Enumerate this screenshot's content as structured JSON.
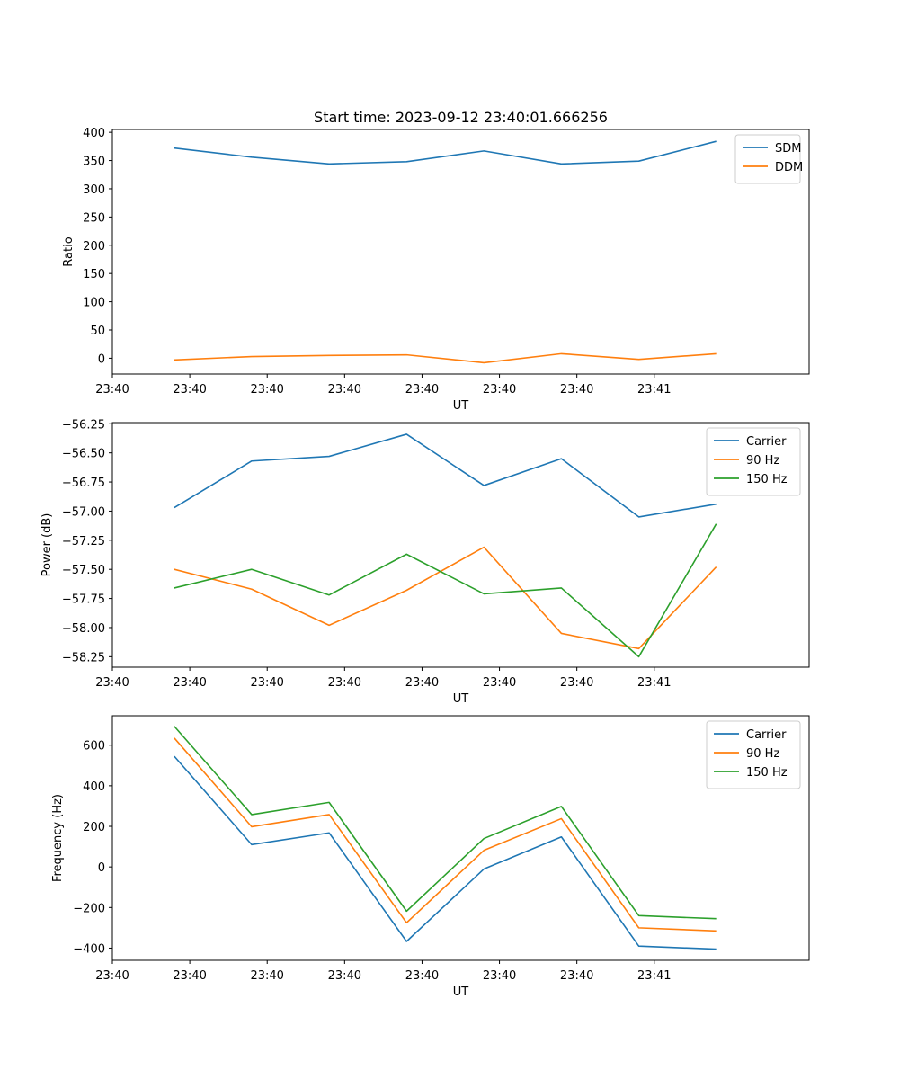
{
  "figure_title": "Start time: 2023-09-12 23:40:01.666256",
  "chart_data": [
    {
      "type": "line",
      "name": "ratio",
      "xlabel": "UT",
      "ylabel": "Ratio",
      "x_ticks": [
        "23:40",
        "23:40",
        "23:40",
        "23:40",
        "23:40",
        "23:40",
        "23:40",
        "23:41"
      ],
      "x": [
        1,
        2,
        3,
        4,
        5,
        6,
        7,
        8
      ],
      "xlim": [
        0.2,
        9.2
      ],
      "ylim": [
        -28,
        405
      ],
      "y_ticks": [
        0,
        50,
        100,
        150,
        200,
        250,
        300,
        350,
        400
      ],
      "y_tick_labels": [
        "0",
        "50",
        "100",
        "150",
        "200",
        "250",
        "300",
        "350",
        "400"
      ],
      "legend": "top-right",
      "series": [
        {
          "name": "SDM",
          "color": "#1f77b4",
          "values": [
            372,
            356,
            344,
            348,
            367,
            344,
            349,
            384
          ]
        },
        {
          "name": "DDM",
          "color": "#ff7f0e",
          "values": [
            -3,
            3,
            5,
            6,
            -8,
            8,
            -2,
            8
          ]
        }
      ]
    },
    {
      "type": "line",
      "name": "power",
      "xlabel": "UT",
      "ylabel": "Power (dB)",
      "x_ticks": [
        "23:40",
        "23:40",
        "23:40",
        "23:40",
        "23:40",
        "23:40",
        "23:40",
        "23:41"
      ],
      "x": [
        1,
        2,
        3,
        4,
        5,
        6,
        7,
        8
      ],
      "xlim": [
        0.2,
        9.2
      ],
      "ylim": [
        -58.34,
        -56.24
      ],
      "y_ticks": [
        -58.25,
        -58.0,
        -57.75,
        -57.5,
        -57.25,
        -57.0,
        -56.75,
        -56.5,
        -56.25
      ],
      "y_tick_labels": [
        "−58.25",
        "−58.00",
        "−57.75",
        "−57.50",
        "−57.25",
        "−57.00",
        "−56.75",
        "−56.50",
        "−56.25"
      ],
      "legend": "top-right",
      "series": [
        {
          "name": "Carrier",
          "color": "#1f77b4",
          "values": [
            -56.97,
            -56.57,
            -56.53,
            -56.34,
            -56.78,
            -56.55,
            -57.05,
            -56.94
          ]
        },
        {
          "name": "90 Hz",
          "color": "#ff7f0e",
          "values": [
            -57.5,
            -57.67,
            -57.98,
            -57.68,
            -57.31,
            -58.05,
            -58.18,
            -57.48
          ]
        },
        {
          "name": "150 Hz",
          "color": "#2ca02c",
          "values": [
            -57.66,
            -57.5,
            -57.72,
            -57.37,
            -57.71,
            -57.66,
            -58.25,
            -57.11
          ]
        }
      ]
    },
    {
      "type": "line",
      "name": "frequency",
      "xlabel": "UT",
      "ylabel": "Frequency (Hz)",
      "x_ticks": [
        "23:40",
        "23:40",
        "23:40",
        "23:40",
        "23:40",
        "23:40",
        "23:40",
        "23:41"
      ],
      "x": [
        1,
        2,
        3,
        4,
        5,
        6,
        7,
        8
      ],
      "xlim": [
        0.2,
        9.2
      ],
      "ylim": [
        -460,
        745
      ],
      "y_ticks": [
        -400,
        -200,
        0,
        200,
        400,
        600
      ],
      "y_tick_labels": [
        "−400",
        "−200",
        "0",
        "200",
        "400",
        "600"
      ],
      "legend": "top-right",
      "series": [
        {
          "name": "Carrier",
          "color": "#1f77b4",
          "values": [
            545,
            110,
            168,
            -367,
            -10,
            148,
            -390,
            -405
          ]
        },
        {
          "name": "90 Hz",
          "color": "#ff7f0e",
          "values": [
            635,
            198,
            258,
            -275,
            82,
            238,
            -300,
            -315
          ]
        },
        {
          "name": "150 Hz",
          "color": "#2ca02c",
          "values": [
            693,
            258,
            318,
            -218,
            140,
            298,
            -240,
            -255
          ]
        }
      ]
    }
  ]
}
